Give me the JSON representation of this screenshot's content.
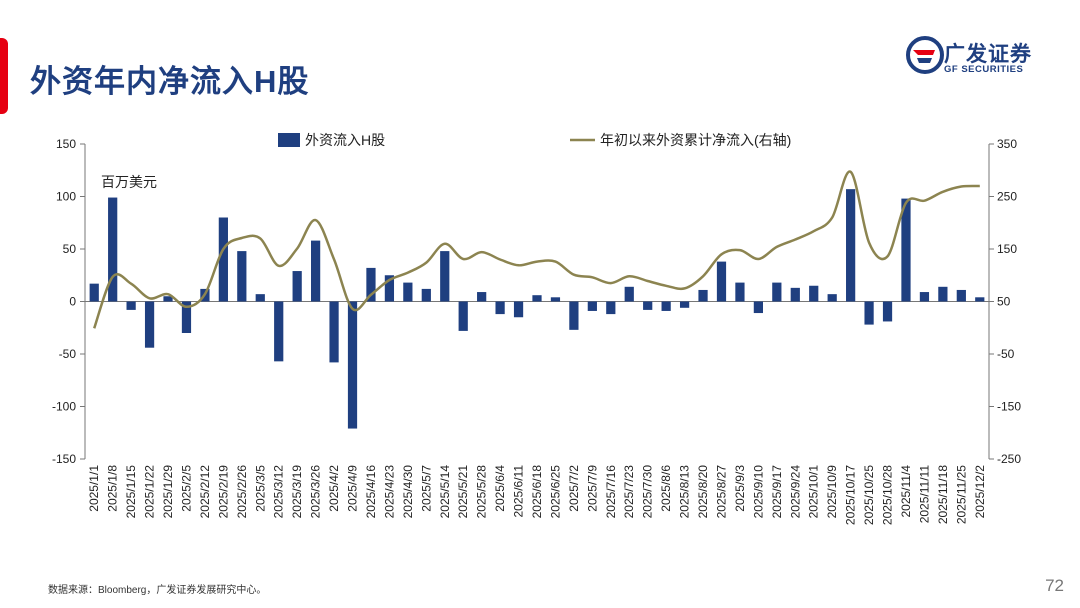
{
  "header": {
    "title": "外资年内净流入H股"
  },
  "logo": {
    "name_cn": "广发证券",
    "name_en": "GF SECURITIES",
    "icon": "gf-logo-icon"
  },
  "footer": {
    "source": "数据来源：Bloomberg，广发证券发展研究中心。",
    "page_number": "72"
  },
  "colors": {
    "bar": "#1f3f80",
    "line": "#8c8450",
    "title": "#1f3f80",
    "accent": "#e60012"
  },
  "chart_data": {
    "type": "bar",
    "unit_label": "百万美元",
    "ylim": [
      -150,
      150
    ],
    "y_ticks": [
      150,
      100,
      50,
      0,
      -50,
      -100,
      -150
    ],
    "y2lim": [
      -250,
      350
    ],
    "y2_ticks": [
      350,
      250,
      150,
      50,
      -50,
      -150,
      -250
    ],
    "legend_position": "top",
    "grid": false,
    "x_tick_labels": [
      "2025/1/1",
      "2025/1/8",
      "2025/1/15",
      "2025/1/22",
      "2025/1/29",
      "2025/2/5",
      "2025/2/12",
      "2025/2/19",
      "2025/2/26",
      "2025/3/5",
      "2025/3/12",
      "2025/3/19",
      "2025/3/26",
      "2025/4/2",
      "2025/4/9",
      "2025/4/16",
      "2025/4/23",
      "2025/4/30",
      "2025/5/7",
      "2025/5/14",
      "2025/5/21",
      "2025/5/28",
      "2025/6/4",
      "2025/6/11",
      "2025/6/18",
      "2025/6/25",
      "2025/7/2",
      "2025/7/9",
      "2025/7/16",
      "2025/7/23",
      "2025/7/30",
      "2025/8/6",
      "2025/8/13",
      "2025/8/20",
      "2025/8/27",
      "2025/9/3",
      "2025/9/10",
      "2025/9/17",
      "2025/9/24",
      "2025/10/1",
      "2025/10/9",
      "2025/10/17",
      "2025/10/25",
      "2025/10/28",
      "2025/11/4",
      "2025/11/11",
      "2025/11/18",
      "2025/11/25",
      "2025/12/2"
    ],
    "series": [
      {
        "name": "外资流入H股",
        "type": "bar",
        "axis": "left",
        "values": [
          17,
          99,
          -8,
          -44,
          5,
          -30,
          12,
          80,
          48,
          7,
          -57,
          29,
          58,
          -58,
          -121,
          32,
          25,
          18,
          12,
          48,
          -28,
          9,
          -12,
          -15,
          6,
          4,
          -27,
          -9,
          -12,
          14,
          -8,
          -9,
          -6,
          11,
          38,
          18,
          -11,
          18,
          13,
          15,
          7,
          107,
          -22,
          -19,
          98,
          9,
          14,
          11,
          4
        ]
      },
      {
        "name": "年初以来外资累计净流入(右轴)",
        "type": "line",
        "axis": "right",
        "values": [
          -1,
          97,
          84,
          56,
          64,
          40,
          64,
          150,
          171,
          170,
          118,
          151,
          205,
          130,
          36,
          63,
          91,
          105,
          124,
          160,
          131,
          144,
          130,
          119,
          126,
          126,
          101,
          96,
          85,
          98,
          89,
          80,
          75,
          98,
          140,
          148,
          131,
          154,
          168,
          184,
          210,
          297,
          162,
          136,
          238,
          242,
          259,
          269,
          270
        ]
      }
    ]
  }
}
